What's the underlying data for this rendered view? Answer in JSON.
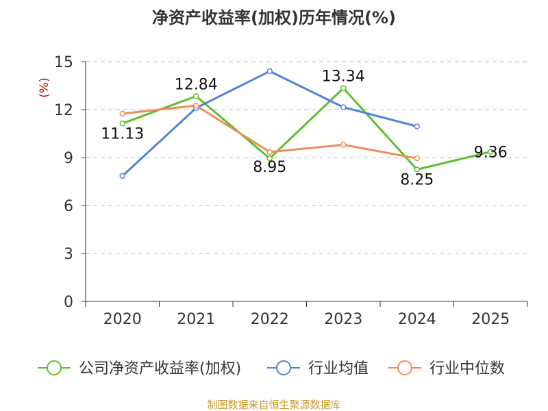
{
  "chart_data": {
    "type": "line",
    "title": "净资产收益率(加权)历年情况(%)",
    "ylabel": "(%)",
    "xlabel": "",
    "categories": [
      "2020",
      "2021",
      "2022",
      "2023",
      "2024",
      "2025"
    ],
    "ylim": [
      0,
      15
    ],
    "yticks": [
      0,
      3,
      6,
      9,
      12,
      15
    ],
    "grid": true,
    "legend_position": "bottom",
    "series": [
      {
        "name": "公司净资产收益率(加权)",
        "color": "#5ac02e",
        "values": [
          11.13,
          12.84,
          8.95,
          13.34,
          8.25,
          9.36
        ],
        "labels": [
          "11.13",
          "12.84",
          "8.95",
          "13.34",
          "8.25",
          "9.36"
        ]
      },
      {
        "name": "行业均值",
        "color": "#4f81dc",
        "values": [
          7.85,
          12.1,
          14.4,
          12.15,
          10.95,
          null
        ]
      },
      {
        "name": "行业中位数",
        "color": "#f08c5a",
        "values": [
          11.75,
          12.25,
          9.35,
          9.8,
          8.95,
          null
        ]
      }
    ],
    "source": "制图数据来自恒生聚源数据库"
  }
}
